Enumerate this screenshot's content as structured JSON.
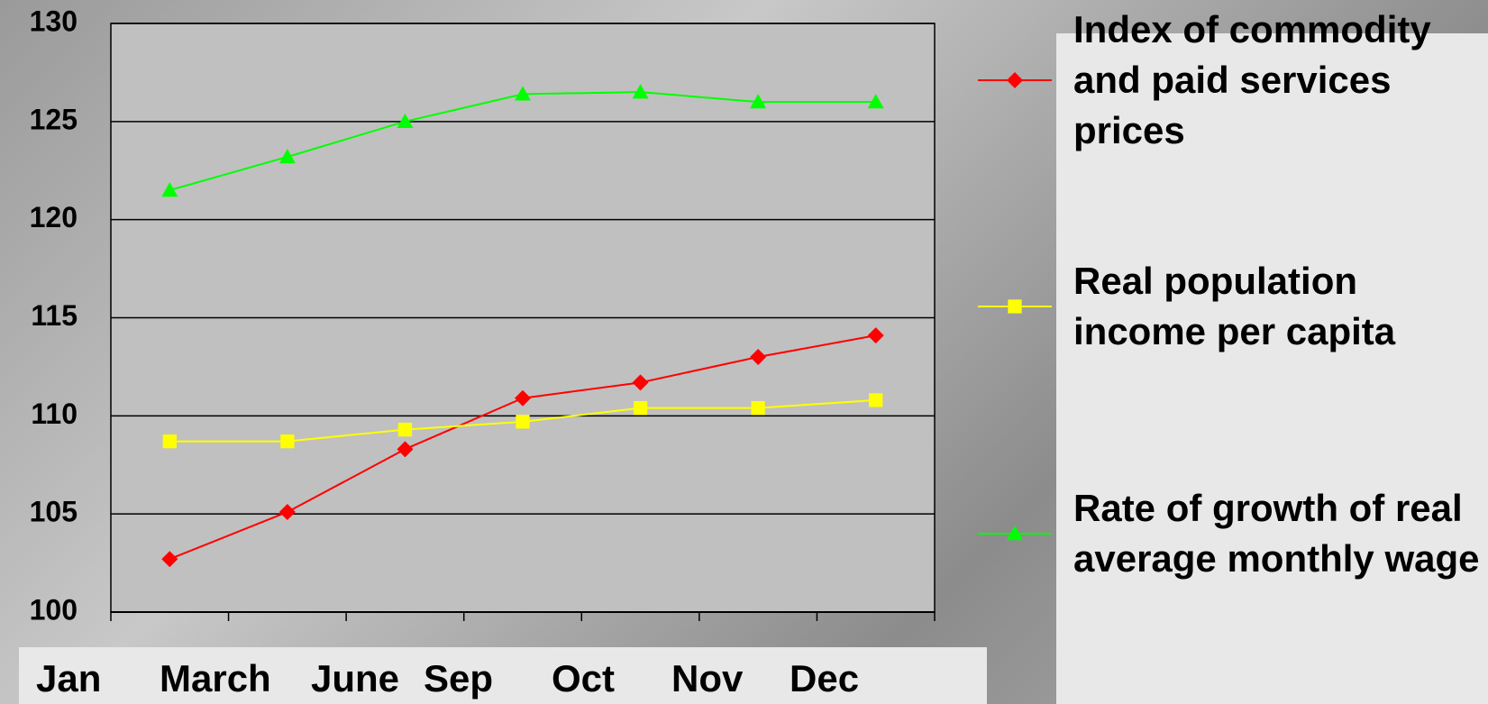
{
  "chart_data": {
    "type": "line",
    "categories": [
      "Jan",
      "March",
      "June",
      "Sep",
      "Oct",
      "Nov",
      "Dec"
    ],
    "series": [
      {
        "name": "Index of commodity and paid services prices",
        "color": "#ff0000",
        "marker": "diamond",
        "values": [
          102.7,
          105.1,
          108.3,
          110.9,
          111.7,
          113.0,
          114.1
        ]
      },
      {
        "name": "Real population income per capita",
        "color": "#ffff00",
        "marker": "square",
        "values": [
          108.7,
          108.7,
          109.3,
          109.7,
          110.4,
          110.4,
          110.8
        ]
      },
      {
        "name": "Rate of growth of real average monthly wage",
        "color": "#00ff00",
        "marker": "triangle",
        "values": [
          121.5,
          123.2,
          125.0,
          126.4,
          126.5,
          126.0,
          126.0
        ]
      }
    ],
    "ylim": [
      100,
      130
    ],
    "yticks": [
      100,
      105,
      110,
      115,
      120,
      125,
      130
    ],
    "grid": true
  }
}
